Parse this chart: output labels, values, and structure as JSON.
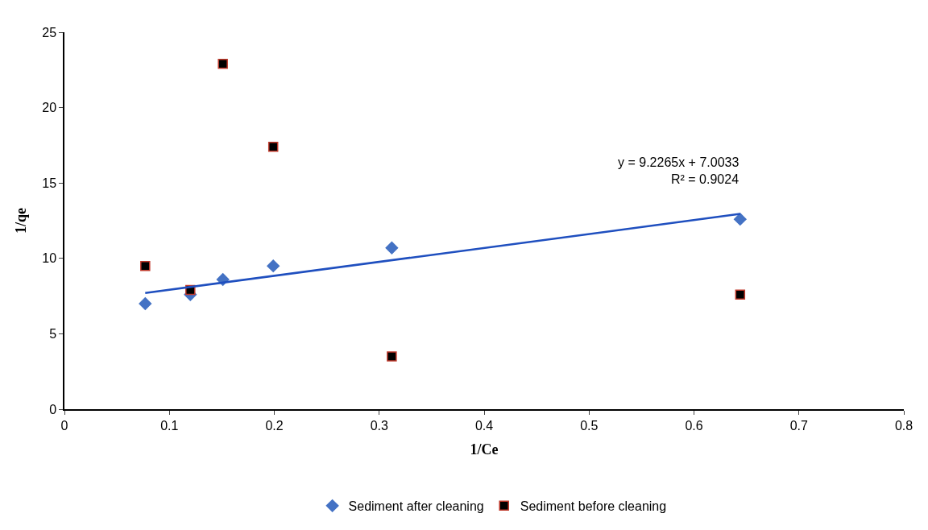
{
  "chart_data": {
    "type": "scatter",
    "xlabel": "1/Ce",
    "ylabel": "1/qe",
    "xlim": [
      0,
      0.8
    ],
    "xticks": [
      0,
      0.1,
      0.2,
      0.3,
      0.4,
      0.5,
      0.6,
      0.7,
      0.8
    ],
    "ylim": [
      0,
      25
    ],
    "yticks": [
      0,
      5,
      10,
      15,
      20,
      25
    ],
    "legend": "bottom",
    "series": [
      {
        "name": "Sediment after cleaning",
        "color": "#4472c4",
        "marker": "diamond",
        "x": [
          0.077,
          0.12,
          0.151,
          0.199,
          0.312,
          0.644
        ],
        "values": [
          7.0,
          7.6,
          8.6,
          9.5,
          10.7,
          12.6
        ]
      },
      {
        "name": "Sediment before cleaning",
        "color": "#000000",
        "marker": "square",
        "x": [
          0.077,
          0.12,
          0.151,
          0.199,
          0.312,
          0.644
        ],
        "values": [
          9.5,
          7.9,
          22.9,
          17.4,
          3.5,
          7.6
        ]
      },
      {
        "type": "line",
        "color": "#1f4fbf",
        "marker": "none",
        "x": [
          0.077,
          0.644
        ],
        "values": [
          7.71,
          12.95
        ]
      }
    ],
    "annotations": [
      "y = 9.2265x + 7.0033",
      "R² = 0.9024"
    ]
  }
}
